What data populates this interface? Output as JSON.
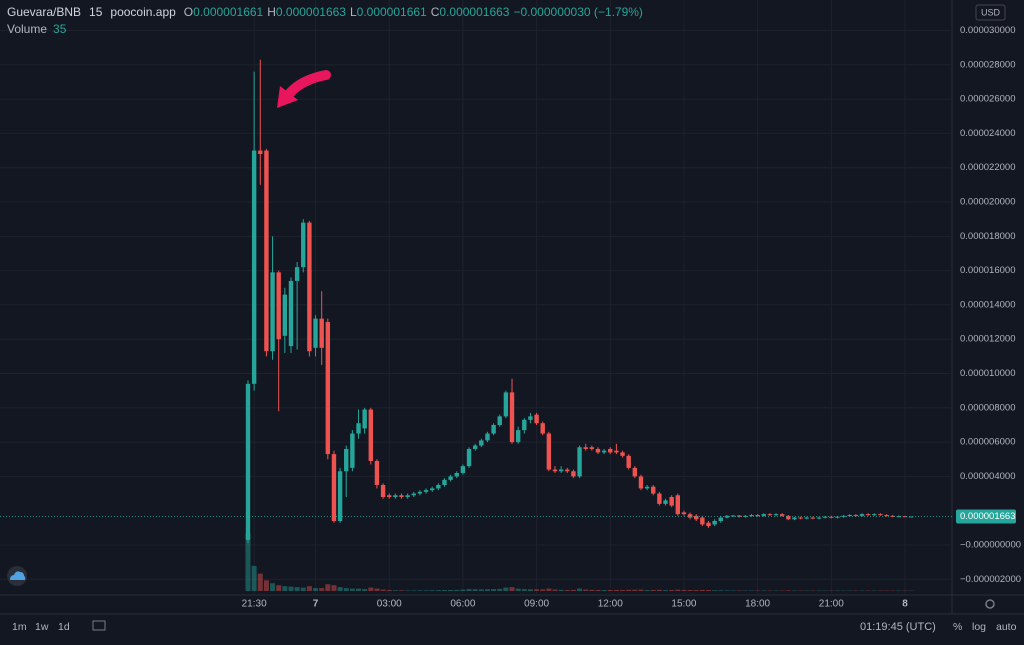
{
  "chart_data": {
    "type": "candlestick",
    "symbol": "Guevara/BNB",
    "interval": "15",
    "source": "poocoin.app",
    "legend": [
      {
        "label": "O",
        "value": "0.000001661"
      },
      {
        "label": "H",
        "value": "0.000001663"
      },
      {
        "label": "L",
        "value": "0.000001661"
      },
      {
        "label": "C",
        "value": "0.000001663"
      }
    ],
    "change": "−0.000000030 (−1.79%)",
    "volume_title": "Volume",
    "up_color": "#26a69a",
    "down_color": "#ef5350",
    "ylim": [
      -2.915e-06,
      3.178e-05
    ],
    "yticks": [
      {
        "value": 3e-05,
        "label": "0.000030000"
      },
      {
        "value": 2.8e-05,
        "label": "0.000028000"
      },
      {
        "value": 2.6e-05,
        "label": "0.000026000"
      },
      {
        "value": 2.4e-05,
        "label": "0.000024000"
      },
      {
        "value": 2.2e-05,
        "label": "0.000022000"
      },
      {
        "value": 2e-05,
        "label": "0.000020000"
      },
      {
        "value": 1.8e-05,
        "label": "0.000018000"
      },
      {
        "value": 1.6e-05,
        "label": "0.000016000"
      },
      {
        "value": 1.4e-05,
        "label": "0.000014000"
      },
      {
        "value": 1.2e-05,
        "label": "0.000012000"
      },
      {
        "value": 1e-05,
        "label": "0.000010000"
      },
      {
        "value": 8e-06,
        "label": "0.000008000"
      },
      {
        "value": 6e-06,
        "label": "0.000006000"
      },
      {
        "value": 4e-06,
        "label": "0.000004000"
      },
      {
        "value": 0,
        "label": "−0.000000000"
      },
      {
        "value": -2e-06,
        "label": "−0.000002000"
      }
    ],
    "price_marker": {
      "value": 1.663e-06,
      "label": "0.000001663"
    },
    "grid": true,
    "categories": [
      null,
      "21:30",
      null,
      null,
      null,
      null,
      null,
      null,
      null,
      null,
      null,
      "7",
      null,
      null,
      null,
      null,
      null,
      null,
      null,
      null,
      null,
      null,
      null,
      "03:00",
      null,
      null,
      null,
      null,
      null,
      null,
      null,
      null,
      null,
      null,
      null,
      "06:00",
      null,
      null,
      null,
      null,
      null,
      null,
      null,
      null,
      null,
      null,
      null,
      "09:00",
      null,
      null,
      null,
      null,
      null,
      null,
      null,
      null,
      null,
      null,
      null,
      "12:00",
      null,
      null,
      null,
      null,
      null,
      null,
      null,
      null,
      null,
      null,
      null,
      "15:00",
      null,
      null,
      null,
      null,
      null,
      null,
      null,
      null,
      null,
      null,
      null,
      "18:00",
      null,
      null,
      null,
      null,
      null,
      null,
      null,
      null,
      null,
      null,
      null,
      "21:00",
      null,
      null,
      null,
      null,
      null,
      null,
      null,
      null,
      null,
      null,
      null,
      "8",
      null
    ],
    "ohlc": [
      [
        3e-07,
        9.6e-06,
        1e-07,
        9.4e-06
      ],
      [
        9.4e-06,
        2.76e-05,
        9e-06,
        2.3e-05
      ],
      [
        2.3e-05,
        2.83e-05,
        2.1e-05,
        2.28e-05
      ],
      [
        2.3e-05,
        2.31e-05,
        1.1e-05,
        1.13e-05
      ],
      [
        1.13e-05,
        1.8e-05,
        1.08e-05,
        1.59e-05
      ],
      [
        1.59e-05,
        1.6e-05,
        7.8e-06,
        1.2e-05
      ],
      [
        1.22e-05,
        1.5e-05,
        1.12e-05,
        1.46e-05
      ],
      [
        1.16e-05,
        1.56e-05,
        1.12e-05,
        1.54e-05
      ],
      [
        1.54e-05,
        1.65e-05,
        1.14e-05,
        1.62e-05
      ],
      [
        1.62e-05,
        1.9e-05,
        1.59e-05,
        1.88e-05
      ],
      [
        1.88e-05,
        1.89e-05,
        1.1e-05,
        1.13e-05
      ],
      [
        1.15e-05,
        1.34e-05,
        1.1e-05,
        1.32e-05
      ],
      [
        1.32e-05,
        1.48e-05,
        1.05e-05,
        1.15e-05
      ],
      [
        1.3e-05,
        1.32e-05,
        5e-06,
        5.3e-06
      ],
      [
        5.3e-06,
        5.5e-06,
        1.3e-06,
        1.4e-06
      ],
      [
        1.4e-06,
        4.5e-06,
        1.3e-06,
        4.3e-06
      ],
      [
        4.3e-06,
        5.8e-06,
        2.8e-06,
        5.6e-06
      ],
      [
        4.5e-06,
        6.7e-06,
        4.3e-06,
        6.5e-06
      ],
      [
        6.5e-06,
        7.9e-06,
        6.2e-06,
        7.1e-06
      ],
      [
        6.8e-06,
        8e-06,
        6.5e-06,
        7.9e-06
      ],
      [
        7.9e-06,
        8e-06,
        4.7e-06,
        4.9e-06
      ],
      [
        4.9e-06,
        5e-06,
        3.3e-06,
        3.5e-06
      ],
      [
        3.5e-06,
        3.6e-06,
        2.7e-06,
        2.8e-06
      ],
      [
        2.9e-06,
        3e-06,
        2.7e-06,
        2.8e-06
      ],
      [
        2.8e-06,
        3e-06,
        2.7e-06,
        2.9e-06
      ],
      [
        2.9e-06,
        3e-06,
        2.7e-06,
        2.8e-06
      ],
      [
        2.8e-06,
        3e-06,
        2.7e-06,
        2.9e-06
      ],
      [
        2.9e-06,
        3.1e-06,
        2.8e-06,
        3e-06
      ],
      [
        3e-06,
        3.2e-06,
        2.9e-06,
        3.1e-06
      ],
      [
        3.1e-06,
        3.3e-06,
        3e-06,
        3.2e-06
      ],
      [
        3.2e-06,
        3.4e-06,
        3.1e-06,
        3.3e-06
      ],
      [
        3.3e-06,
        3.6e-06,
        3.2e-06,
        3.5e-06
      ],
      [
        3.5e-06,
        3.9e-06,
        3.4e-06,
        3.8e-06
      ],
      [
        3.8e-06,
        4.1e-06,
        3.7e-06,
        4e-06
      ],
      [
        4e-06,
        4.3e-06,
        3.9e-06,
        4.2e-06
      ],
      [
        4.2e-06,
        4.7e-06,
        4.1e-06,
        4.6e-06
      ],
      [
        4.6e-06,
        5.7e-06,
        4.5e-06,
        5.6e-06
      ],
      [
        5.6e-06,
        5.9e-06,
        5.5e-06,
        5.8e-06
      ],
      [
        5.8e-06,
        6.2e-06,
        5.7e-06,
        6.1e-06
      ],
      [
        6.1e-06,
        6.6e-06,
        6e-06,
        6.5e-06
      ],
      [
        6.5e-06,
        7.1e-06,
        6.4e-06,
        7e-06
      ],
      [
        7e-06,
        7.6e-06,
        6.9e-06,
        7.5e-06
      ],
      [
        7.5e-06,
        9e-06,
        7.4e-06,
        8.9e-06
      ],
      [
        8.9e-06,
        9.7e-06,
        5.9e-06,
        6e-06
      ],
      [
        6e-06,
        6.9e-06,
        5.9e-06,
        6.7e-06
      ],
      [
        6.7e-06,
        7.4e-06,
        6.5e-06,
        7.3e-06
      ],
      [
        7.3e-06,
        7.7e-06,
        7.1e-06,
        7.5e-06
      ],
      [
        7.6e-06,
        7.7e-06,
        7e-06,
        7.1e-06
      ],
      [
        7.1e-06,
        7.2e-06,
        6.4e-06,
        6.5e-06
      ],
      [
        6.5e-06,
        6.6e-06,
        4.3e-06,
        4.4e-06
      ],
      [
        4.4e-06,
        4.6e-06,
        4.2e-06,
        4.3e-06
      ],
      [
        4.3e-06,
        4.6e-06,
        4.2e-06,
        4.4e-06
      ],
      [
        4.4e-06,
        4.5e-06,
        4.2e-06,
        4.3e-06
      ],
      [
        4.3e-06,
        4.4e-06,
        3.9e-06,
        4e-06
      ],
      [
        4e-06,
        5.8e-06,
        3.9e-06,
        5.7e-06
      ],
      [
        5.7e-06,
        5.9e-06,
        5.5e-06,
        5.6e-06
      ],
      [
        5.7e-06,
        5.8e-06,
        5.5e-06,
        5.6e-06
      ],
      [
        5.6e-06,
        5.7e-06,
        5.3e-06,
        5.4e-06
      ],
      [
        5.4e-06,
        5.6e-06,
        5.3e-06,
        5.5e-06
      ],
      [
        5.6e-06,
        5.7e-06,
        5.3e-06,
        5.4e-06
      ],
      [
        5.5e-06,
        5.9e-06,
        5.3e-06,
        5.4e-06
      ],
      [
        5.4e-06,
        5.5e-06,
        5.1e-06,
        5.2e-06
      ],
      [
        5.2e-06,
        5.3e-06,
        4.4e-06,
        4.5e-06
      ],
      [
        4.5e-06,
        4.6e-06,
        3.9e-06,
        4e-06
      ],
      [
        4e-06,
        4.1e-06,
        3.2e-06,
        3.3e-06
      ],
      [
        3.3e-06,
        3.5e-06,
        3.2e-06,
        3.4e-06
      ],
      [
        3.4e-06,
        3.5e-06,
        2.9e-06,
        3e-06
      ],
      [
        3e-06,
        3.1e-06,
        2.3e-06,
        2.4e-06
      ],
      [
        2.4e-06,
        2.7e-06,
        2.3e-06,
        2.6e-06
      ],
      [
        2.8e-06,
        2.9e-06,
        2.2e-06,
        2.3e-06
      ],
      [
        2.9e-06,
        3e-06,
        1.7e-06,
        1.8e-06
      ],
      [
        1.9e-06,
        2e-06,
        1.7e-06,
        1.8e-06
      ],
      [
        1.8e-06,
        1.9e-06,
        1.5e-06,
        1.6e-06
      ],
      [
        1.7e-06,
        1.8e-06,
        1.4e-06,
        1.5e-06
      ],
      [
        1.6e-06,
        1.7e-06,
        1.1e-06,
        1.2e-06
      ],
      [
        1.3e-06,
        1.4e-06,
        1e-06,
        1.1e-06
      ],
      [
        1.2e-06,
        1.5e-06,
        1.1e-06,
        1.4e-06
      ],
      [
        1.4e-06,
        1.7e-06,
        1.3e-06,
        1.6e-06
      ],
      [
        1.6e-06,
        1.75e-06,
        1.55e-06,
        1.7e-06
      ],
      [
        1.7e-06,
        1.75e-06,
        1.65e-06,
        1.72e-06
      ],
      [
        1.72e-06,
        1.75e-06,
        1.6e-06,
        1.65e-06
      ],
      [
        1.65e-06,
        1.75e-06,
        1.6e-06,
        1.7e-06
      ],
      [
        1.7e-06,
        1.8e-06,
        1.65e-06,
        1.75e-06
      ],
      [
        1.75e-06,
        1.8e-06,
        1.65e-06,
        1.7e-06
      ],
      [
        1.7e-06,
        1.85e-06,
        1.65e-06,
        1.8e-06
      ],
      [
        1.8e-06,
        1.85e-06,
        1.7e-06,
        1.75e-06
      ],
      [
        1.75e-06,
        1.85e-06,
        1.7e-06,
        1.8e-06
      ],
      [
        1.8e-06,
        1.85e-06,
        1.65e-06,
        1.7e-06
      ],
      [
        1.7e-06,
        1.75e-06,
        1.45e-06,
        1.5e-06
      ],
      [
        1.5e-06,
        1.65e-06,
        1.45e-06,
        1.6e-06
      ],
      [
        1.6e-06,
        1.65e-06,
        1.5e-06,
        1.55e-06
      ],
      [
        1.55e-06,
        1.65e-06,
        1.5e-06,
        1.6e-06
      ],
      [
        1.6e-06,
        1.65e-06,
        1.5e-06,
        1.55e-06
      ],
      [
        1.55e-06,
        1.65e-06,
        1.5e-06,
        1.6e-06
      ],
      [
        1.6e-06,
        1.7e-06,
        1.55e-06,
        1.65e-06
      ],
      [
        1.65e-06,
        1.7e-06,
        1.55e-06,
        1.6e-06
      ],
      [
        1.6e-06,
        1.7e-06,
        1.55e-06,
        1.65e-06
      ],
      [
        1.65e-06,
        1.75e-06,
        1.6e-06,
        1.7e-06
      ],
      [
        1.7e-06,
        1.8e-06,
        1.65e-06,
        1.75e-06
      ],
      [
        1.75e-06,
        1.8e-06,
        1.65e-06,
        1.7e-06
      ],
      [
        1.7e-06,
        1.85e-06,
        1.65e-06,
        1.8e-06
      ],
      [
        1.8e-06,
        1.85e-06,
        1.7e-06,
        1.75e-06
      ],
      [
        1.75e-06,
        1.85e-06,
        1.7e-06,
        1.8e-06
      ],
      [
        1.8e-06,
        1.85e-06,
        1.7e-06,
        1.75e-06
      ],
      [
        1.75e-06,
        1.8e-06,
        1.65e-06,
        1.7e-06
      ],
      [
        1.7e-06,
        1.75e-06,
        1.62e-06,
        1.66e-06
      ],
      [
        1.66e-06,
        1.72e-06,
        1.63e-06,
        1.68e-06
      ],
      [
        1.68e-06,
        1.7e-06,
        1.64e-06,
        1.66e-06
      ],
      [
        1.661e-06,
        1.663e-06,
        1.661e-06,
        1.663e-06
      ]
    ],
    "volumes": [
      6000,
      2600,
      1800,
      1100,
      800,
      600,
      500,
      450,
      400,
      350,
      500,
      300,
      300,
      700,
      600,
      400,
      300,
      250,
      250,
      200,
      350,
      250,
      150,
      100,
      80,
      70,
      60,
      60,
      70,
      70,
      80,
      90,
      100,
      110,
      120,
      150,
      200,
      180,
      170,
      180,
      200,
      220,
      350,
      400,
      250,
      200,
      180,
      170,
      160,
      250,
      150,
      120,
      110,
      120,
      250,
      150,
      120,
      110,
      100,
      100,
      110,
      100,
      120,
      130,
      140,
      100,
      110,
      120,
      90,
      100,
      140,
      110,
      100,
      90,
      110,
      100,
      80,
      70,
      60,
      55,
      50,
      50,
      50,
      45,
      45,
      45,
      45,
      45,
      60,
      45,
      40,
      40,
      40,
      40,
      40,
      40,
      40,
      40,
      40,
      40,
      40,
      40,
      40,
      40,
      40,
      40,
      40,
      40,
      35
    ]
  },
  "currency": "USD",
  "toolbar": {
    "intervals": [
      "1m",
      "1w",
      "1d"
    ],
    "clock": "01:19:45 (UTC)",
    "scale_options": [
      "%",
      "log",
      "auto"
    ]
  }
}
